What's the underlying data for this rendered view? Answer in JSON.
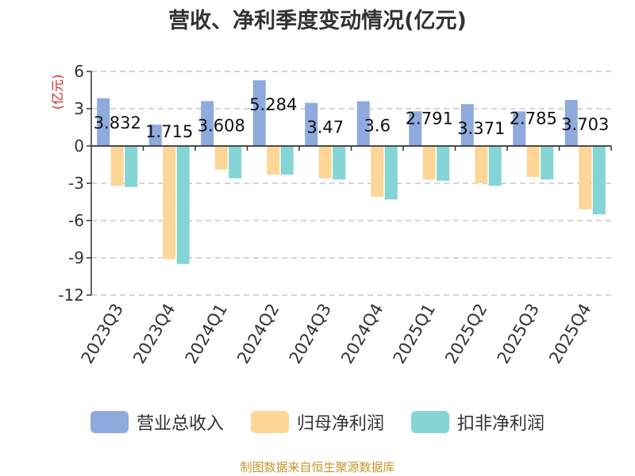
{
  "title": "营收、净利季度变动情况(亿元)",
  "source": "制图数据来自恒生聚源数据库",
  "chart_data": {
    "type": "bar",
    "unit_label": "(亿元)",
    "categories": [
      "2023Q3",
      "2023Q4",
      "2024Q1",
      "2024Q2",
      "2024Q3",
      "2024Q4",
      "2025Q1",
      "2025Q2",
      "2025Q3",
      "2025Q4"
    ],
    "series": [
      {
        "name": "营业总收入",
        "color": "#8faadc",
        "values": [
          3.832,
          1.715,
          3.608,
          5.284,
          3.47,
          3.6,
          2.791,
          3.371,
          2.785,
          3.703
        ],
        "value_labels": [
          "3.832",
          "1.715",
          "3.608",
          "5.284",
          "3.47",
          "3.6",
          "2.791",
          "3.371",
          "2.785",
          "3.703"
        ]
      },
      {
        "name": "归母净利润",
        "color": "#fdd698",
        "values": [
          -3.2,
          -9.1,
          -1.9,
          -2.3,
          -2.6,
          -4.1,
          -2.7,
          -3.0,
          -2.5,
          -5.1
        ]
      },
      {
        "name": "扣非净利润",
        "color": "#85d4d6",
        "values": [
          -3.3,
          -9.5,
          -2.6,
          -2.3,
          -2.7,
          -4.3,
          -2.8,
          -3.2,
          -2.7,
          -5.5
        ]
      }
    ],
    "yticks": [
      6,
      3,
      0,
      -3,
      -6,
      -9,
      -12
    ],
    "ylim": [
      -12,
      6
    ],
    "grid": true,
    "legend_position": "bottom"
  }
}
